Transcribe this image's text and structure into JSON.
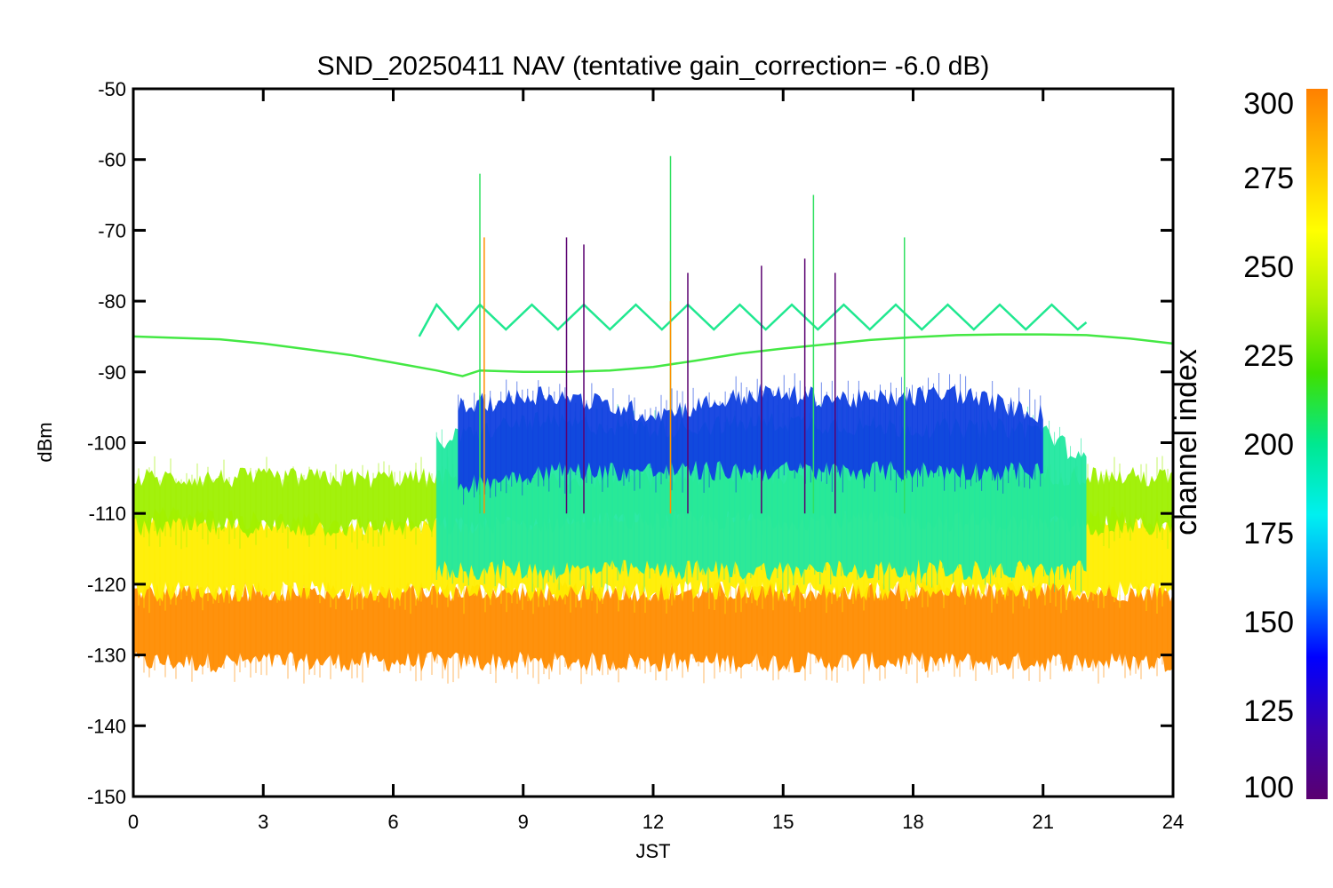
{
  "chart_data": {
    "type": "line",
    "title": "SND_20250411 NAV (tentative gain_correction= -6.0 dB)",
    "xlabel": "JST",
    "ylabel": "dBm",
    "xlim": [
      0,
      24
    ],
    "ylim": [
      -150,
      -50
    ],
    "x_ticks": [
      "0",
      "3",
      "6",
      "9",
      "12",
      "15",
      "18",
      "21",
      "24"
    ],
    "y_ticks": [
      "-50",
      "-60",
      "-70",
      "-80",
      "-90",
      "-100",
      "-110",
      "-120",
      "-130",
      "-140",
      "-150"
    ],
    "grid": false,
    "colorbar": {
      "label": "channel index",
      "range": [
        100,
        300
      ],
      "ticks": [
        "300",
        "275",
        "250",
        "225",
        "200",
        "175",
        "150",
        "125",
        "100"
      ],
      "colors": [
        "#5a0070",
        "#3a00b0",
        "#0000ff",
        "#0096ff",
        "#00f0f0",
        "#00e890",
        "#40e000",
        "#b0f000",
        "#ffff00",
        "#ffc000",
        "#ff8000"
      ]
    },
    "series": [
      {
        "color": "#ff8c00",
        "band": [
          [
            0,
            -121,
            -131
          ],
          [
            6,
            -121,
            -131
          ],
          [
            12,
            -121,
            -131
          ],
          [
            18,
            -121,
            -131
          ],
          [
            24,
            -121,
            -131
          ]
        ]
      },
      {
        "color": "#ffee00",
        "band": [
          [
            0,
            -110,
            -121
          ],
          [
            3,
            -111,
            -121
          ],
          [
            6,
            -112,
            -121
          ],
          [
            9,
            -111,
            -121
          ],
          [
            12,
            -110,
            -121
          ],
          [
            15,
            -110,
            -121
          ],
          [
            18,
            -108,
            -121
          ],
          [
            21,
            -110,
            -121
          ],
          [
            24,
            -111,
            -121
          ]
        ]
      },
      {
        "color": "#9ef000",
        "band": [
          [
            0,
            -105,
            -112
          ],
          [
            6,
            -105,
            -112
          ],
          [
            12,
            -105,
            -111
          ],
          [
            18,
            -104,
            -111
          ],
          [
            24,
            -105,
            -112
          ]
        ]
      },
      {
        "color": "#22e8a0",
        "band": [
          [
            7,
            -100,
            -118
          ],
          [
            9,
            -97,
            -118
          ],
          [
            12,
            -98,
            -118
          ],
          [
            15,
            -97,
            -118
          ],
          [
            18,
            -98,
            -118
          ],
          [
            21,
            -98,
            -118
          ],
          [
            22,
            -103,
            -118
          ]
        ]
      },
      {
        "color": "#1040e0",
        "band": [
          [
            7.5,
            -95,
            -106
          ],
          [
            9.5,
            -93,
            -104
          ],
          [
            12,
            -96,
            -104
          ],
          [
            14.5,
            -93,
            -104
          ],
          [
            17,
            -94,
            -104
          ],
          [
            19,
            -93,
            -104
          ],
          [
            21,
            -96,
            -104
          ]
        ]
      },
      {
        "color": "#44e844",
        "points": [
          [
            0,
            -85
          ],
          [
            1,
            -85.2
          ],
          [
            2,
            -85.4
          ],
          [
            3,
            -86
          ],
          [
            4,
            -86.8
          ],
          [
            5,
            -87.6
          ],
          [
            6,
            -88.7
          ],
          [
            7,
            -89.8
          ],
          [
            7.6,
            -90.6
          ],
          [
            8,
            -89.8
          ],
          [
            9,
            -90
          ],
          [
            10,
            -90
          ],
          [
            11,
            -89.8
          ],
          [
            12,
            -89.3
          ],
          [
            13,
            -88.4
          ],
          [
            14,
            -87.4
          ],
          [
            15,
            -86.7
          ],
          [
            16,
            -86.1
          ],
          [
            17,
            -85.5
          ],
          [
            18,
            -85.1
          ],
          [
            19,
            -84.8
          ],
          [
            20,
            -84.7
          ],
          [
            21,
            -84.7
          ],
          [
            22,
            -84.8
          ],
          [
            23,
            -85.3
          ],
          [
            24,
            -86
          ]
        ]
      },
      {
        "color": "#20e890",
        "points": [
          [
            6.6,
            -85
          ],
          [
            7,
            -80.5
          ],
          [
            7.5,
            -84
          ],
          [
            8,
            -80.5
          ],
          [
            8.6,
            -84
          ],
          [
            9.2,
            -80.5
          ],
          [
            9.8,
            -84
          ],
          [
            10.4,
            -80.5
          ],
          [
            11,
            -84
          ],
          [
            11.6,
            -80.5
          ],
          [
            12.2,
            -84
          ],
          [
            12.8,
            -80.5
          ],
          [
            13.4,
            -84
          ],
          [
            14,
            -80.5
          ],
          [
            14.6,
            -84
          ],
          [
            15.2,
            -80.5
          ],
          [
            15.8,
            -84
          ],
          [
            16.4,
            -80.5
          ],
          [
            17,
            -84
          ],
          [
            17.6,
            -80.5
          ],
          [
            18.2,
            -84
          ],
          [
            18.8,
            -80.5
          ],
          [
            19.4,
            -84
          ],
          [
            20,
            -80.5
          ],
          [
            20.6,
            -84
          ],
          [
            21.2,
            -80.5
          ],
          [
            21.8,
            -84
          ],
          [
            22.0,
            -83
          ]
        ]
      }
    ],
    "spikes": [
      {
        "x": 8.0,
        "top": -62,
        "color": "#30e060"
      },
      {
        "x": 8.1,
        "top": -71,
        "color": "#ff9000"
      },
      {
        "x": 10.0,
        "top": -71,
        "color": "#5a0070"
      },
      {
        "x": 10.4,
        "top": -72,
        "color": "#5a0070"
      },
      {
        "x": 12.4,
        "top": -59.5,
        "color": "#30e060"
      },
      {
        "x": 12.4,
        "top": -80,
        "color": "#ff9000"
      },
      {
        "x": 12.8,
        "top": -76,
        "color": "#5a0070"
      },
      {
        "x": 14.5,
        "top": -75,
        "color": "#5a0070"
      },
      {
        "x": 15.5,
        "top": -74,
        "color": "#5a0070"
      },
      {
        "x": 15.7,
        "top": -65,
        "color": "#30e060"
      },
      {
        "x": 16.2,
        "top": -76,
        "color": "#5a0070"
      },
      {
        "x": 17.8,
        "top": -71,
        "color": "#30e060"
      }
    ]
  }
}
